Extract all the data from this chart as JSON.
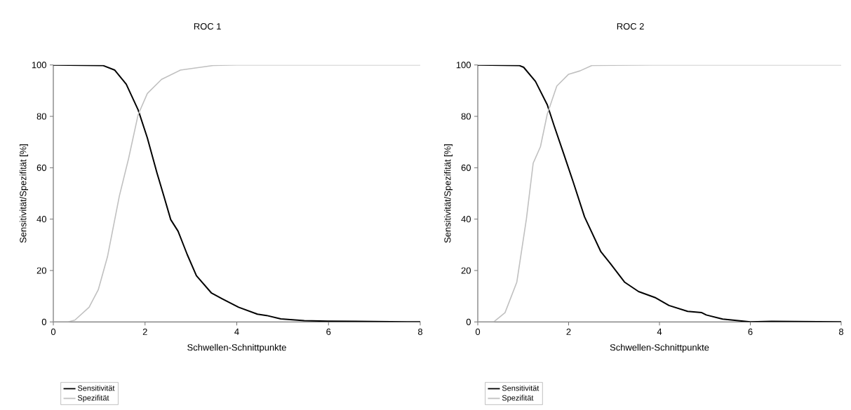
{
  "chart_data": [
    {
      "type": "line",
      "title": "ROC 1",
      "xlabel": "Schwellen-Schnittpunkte",
      "ylabel": "Sensitivität/Spezifität [%]",
      "xlim": [
        0,
        8
      ],
      "ylim": [
        0,
        100
      ],
      "xticks": [
        0,
        2,
        4,
        6,
        8
      ],
      "yticks": [
        0,
        20,
        40,
        60,
        80,
        100
      ],
      "legend": "bottom left",
      "marker": "none",
      "line_style": "solid",
      "series": [
        {
          "name": "Sensitivität",
          "color": "#000000",
          "x": [
            0,
            1.08,
            1.34,
            1.59,
            1.85,
            2.05,
            2.26,
            2.41,
            2.56,
            2.72,
            2.92,
            3.12,
            3.45,
            3.69,
            4.04,
            4.45,
            4.65,
            4.96,
            5.47,
            5.98,
            7.72,
            8
          ],
          "values": [
            100,
            99.8,
            98,
            92.5,
            82.5,
            71.6,
            58,
            49,
            39.8,
            35.3,
            26.2,
            18,
            11.2,
            8.9,
            5.7,
            3.0,
            2.5,
            1.2,
            0.5,
            0.3,
            0,
            0
          ]
        },
        {
          "name": "Spezifität",
          "color": "#c0c0c0",
          "x": [
            0,
            0.32,
            0.47,
            0.78,
            0.98,
            1.18,
            1.44,
            1.64,
            1.85,
            2.05,
            2.36,
            2.77,
            3.48,
            4.0,
            8
          ],
          "values": [
            0,
            0,
            0.7,
            5.7,
            12.5,
            25.3,
            49,
            63.5,
            80.7,
            88.9,
            94.4,
            98,
            99.8,
            100,
            100
          ]
        }
      ]
    },
    {
      "type": "line",
      "title": "ROC 2",
      "xlabel": "Schwellen-Schnittpunkte",
      "ylabel": "Sensitivität/Spezifität [%]",
      "xlim": [
        0,
        8
      ],
      "ylim": [
        0,
        100
      ],
      "xticks": [
        0,
        2,
        4,
        6,
        8
      ],
      "yticks": [
        0,
        20,
        40,
        60,
        80,
        100
      ],
      "legend": "bottom left",
      "marker": "none",
      "line_style": "solid",
      "series": [
        {
          "name": "Sensitivität",
          "color": "#000000",
          "x": [
            0,
            0.91,
            1.01,
            1.27,
            1.53,
            1.68,
            1.89,
            2.1,
            2.35,
            2.71,
            2.92,
            3.23,
            3.54,
            3.9,
            4.21,
            4.62,
            4.93,
            5.03,
            5.39,
            6.0,
            6.47,
            8
          ],
          "values": [
            100,
            99.8,
            99.1,
            93.6,
            84.5,
            76.4,
            65.5,
            54.5,
            40.9,
            27.3,
            22.7,
            15.5,
            11.8,
            9.5,
            6.4,
            4.1,
            3.6,
            2.7,
            1.1,
            0,
            0.2,
            0
          ]
        },
        {
          "name": "Spezifität",
          "color": "#c0c0c0",
          "x": [
            0,
            0.35,
            0.6,
            0.86,
            1.07,
            1.22,
            1.38,
            1.53,
            1.74,
            2.0,
            2.25,
            2.51,
            3.85,
            8
          ],
          "values": [
            0,
            0,
            3.6,
            15.5,
            40,
            61.8,
            68.2,
            80.9,
            91.8,
            96.4,
            97.7,
            99.8,
            100,
            100
          ]
        }
      ]
    }
  ]
}
